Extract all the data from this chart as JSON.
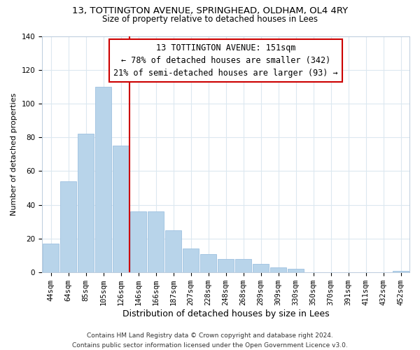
{
  "title": "13, TOTTINGTON AVENUE, SPRINGHEAD, OLDHAM, OL4 4RY",
  "subtitle": "Size of property relative to detached houses in Lees",
  "xlabel": "Distribution of detached houses by size in Lees",
  "ylabel": "Number of detached properties",
  "categories": [
    "44sqm",
    "64sqm",
    "85sqm",
    "105sqm",
    "126sqm",
    "146sqm",
    "166sqm",
    "187sqm",
    "207sqm",
    "228sqm",
    "248sqm",
    "268sqm",
    "289sqm",
    "309sqm",
    "330sqm",
    "350sqm",
    "370sqm",
    "391sqm",
    "411sqm",
    "432sqm",
    "452sqm"
  ],
  "values": [
    17,
    54,
    82,
    110,
    75,
    36,
    36,
    25,
    14,
    11,
    8,
    8,
    5,
    3,
    2,
    0,
    0,
    0,
    0,
    0,
    1
  ],
  "bar_color": "#b8d4ea",
  "bar_edge_color": "#9ec1e0",
  "vline_color": "#cc0000",
  "vline_x_index": 4.5,
  "annotation_title": "13 TOTTINGTON AVENUE: 151sqm",
  "annotation_line1": "← 78% of detached houses are smaller (342)",
  "annotation_line2": "21% of semi-detached houses are larger (93) →",
  "annotation_box_facecolor": "#ffffff",
  "annotation_box_edgecolor": "#cc0000",
  "ylim": [
    0,
    140
  ],
  "yticks": [
    0,
    20,
    40,
    60,
    80,
    100,
    120,
    140
  ],
  "footer_line1": "Contains HM Land Registry data © Crown copyright and database right 2024.",
  "footer_line2": "Contains public sector information licensed under the Open Government Licence v3.0.",
  "background_color": "#ffffff",
  "grid_color": "#dce8f0",
  "title_fontsize": 9.5,
  "subtitle_fontsize": 8.5,
  "xlabel_fontsize": 9,
  "ylabel_fontsize": 8,
  "tick_fontsize": 7.5,
  "annotation_fontsize": 8.5,
  "footer_fontsize": 6.5
}
